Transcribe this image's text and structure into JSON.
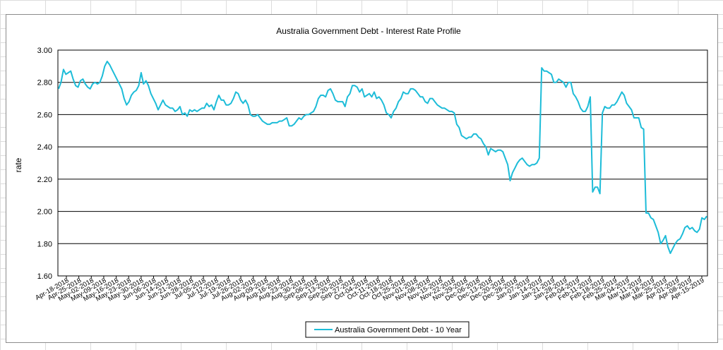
{
  "colors": {
    "series": "#1dbcd8",
    "grid": "#000000",
    "sheet_grid": "#dcdcdc"
  },
  "chart_data": {
    "type": "line",
    "title": "Australia Government Debt -  Interest Rate Profile",
    "xlabel": "",
    "ylabel": "rate",
    "ylim": [
      1.6,
      3.0
    ],
    "ytick_step": 0.2,
    "yticks": [
      "1.60",
      "1.80",
      "2.00",
      "2.20",
      "2.40",
      "2.60",
      "2.80",
      "3.00"
    ],
    "legend": "bottom-center",
    "x_tick_labels": [
      "Apr-18-2018",
      "Apr-25-2018",
      "May-02-2018",
      "May-09-2018",
      "May-16-2018",
      "May-23-2018",
      "May-30-2018",
      "Jun-06-2018",
      "Jun-14-2018",
      "Jun-21-2018",
      "Jun-28-2018",
      "Jul-05-2018",
      "Jul-12-2018",
      "Jul-19-2018",
      "Jul-26-2018",
      "Aug-02-2018",
      "Aug-09-2018",
      "Aug-16-2018",
      "Aug-23-2018",
      "Aug-30-2018",
      "Sep-06-2018",
      "Sep-13-2018",
      "Sep-20-2018",
      "Sep-27-2018",
      "Oct-04-2018",
      "Oct-11-2018",
      "Oct-18-2018",
      "Oct-25-2018",
      "Nov-01-2018",
      "Nov-08-2018",
      "Nov-15-2018",
      "Nov-22-2018",
      "Nov-29-2018",
      "Dec-06-2018",
      "Dec-13-2018",
      "Dec-20-2018",
      "Dec-28-2018",
      "Jan-07-2019",
      "Jan-14-2019",
      "Jan-21-2019",
      "Jan-28-2019",
      "Feb-04-2019",
      "Feb-11-2019",
      "Feb-18-2019",
      "Feb-25-2019",
      "Mar-04-2019",
      "Mar-11-2019",
      "Mar-18-2019",
      "Mar-25-2019",
      "Apr-01-2019",
      "Apr-08-2019",
      "Apr-15-2019"
    ],
    "series": [
      {
        "name": "Australia Government Debt - 10 Year",
        "values": [
          2.76,
          2.8,
          2.88,
          2.85,
          2.86,
          2.87,
          2.82,
          2.78,
          2.77,
          2.81,
          2.82,
          2.79,
          2.77,
          2.76,
          2.79,
          2.8,
          2.79,
          2.8,
          2.84,
          2.9,
          2.93,
          2.91,
          2.88,
          2.85,
          2.82,
          2.79,
          2.76,
          2.7,
          2.66,
          2.68,
          2.72,
          2.74,
          2.75,
          2.78,
          2.86,
          2.79,
          2.81,
          2.78,
          2.73,
          2.7,
          2.67,
          2.63,
          2.66,
          2.69,
          2.66,
          2.65,
          2.64,
          2.64,
          2.62,
          2.63,
          2.65,
          2.6,
          2.61,
          2.59,
          2.63,
          2.62,
          2.63,
          2.62,
          2.63,
          2.64,
          2.64,
          2.67,
          2.65,
          2.66,
          2.63,
          2.68,
          2.72,
          2.69,
          2.69,
          2.66,
          2.66,
          2.67,
          2.7,
          2.74,
          2.73,
          2.69,
          2.67,
          2.69,
          2.66,
          2.6,
          2.59,
          2.59,
          2.6,
          2.58,
          2.56,
          2.55,
          2.54,
          2.54,
          2.55,
          2.55,
          2.55,
          2.56,
          2.56,
          2.57,
          2.58,
          2.53,
          2.53,
          2.54,
          2.56,
          2.58,
          2.57,
          2.59,
          2.6,
          2.6,
          2.61,
          2.62,
          2.65,
          2.7,
          2.72,
          2.72,
          2.71,
          2.75,
          2.76,
          2.73,
          2.69,
          2.68,
          2.68,
          2.68,
          2.65,
          2.71,
          2.73,
          2.78,
          2.78,
          2.77,
          2.74,
          2.76,
          2.71,
          2.72,
          2.73,
          2.71,
          2.74,
          2.7,
          2.71,
          2.69,
          2.66,
          2.61,
          2.6,
          2.58,
          2.62,
          2.64,
          2.68,
          2.7,
          2.74,
          2.73,
          2.73,
          2.76,
          2.76,
          2.75,
          2.73,
          2.71,
          2.71,
          2.68,
          2.67,
          2.7,
          2.7,
          2.68,
          2.66,
          2.65,
          2.64,
          2.64,
          2.63,
          2.62,
          2.62,
          2.61,
          2.54,
          2.52,
          2.47,
          2.46,
          2.45,
          2.46,
          2.46,
          2.48,
          2.48,
          2.46,
          2.45,
          2.42,
          2.4,
          2.35,
          2.39,
          2.38,
          2.37,
          2.38,
          2.38,
          2.37,
          2.33,
          2.29,
          2.19,
          2.24,
          2.27,
          2.3,
          2.32,
          2.33,
          2.31,
          2.29,
          2.28,
          2.29,
          2.29,
          2.3,
          2.33,
          2.89,
          2.87,
          2.87,
          2.86,
          2.85,
          2.8,
          2.8,
          2.82,
          2.81,
          2.8,
          2.77,
          2.8,
          2.8,
          2.73,
          2.71,
          2.68,
          2.64,
          2.62,
          2.62,
          2.65,
          2.71,
          2.12,
          2.15,
          2.15,
          2.11,
          2.61,
          2.65,
          2.64,
          2.64,
          2.66,
          2.66,
          2.68,
          2.71,
          2.74,
          2.72,
          2.67,
          2.65,
          2.63,
          2.58,
          2.58,
          2.58,
          2.52,
          2.51,
          1.99,
          1.99,
          1.96,
          1.95,
          1.91,
          1.87,
          1.8,
          1.82,
          1.85,
          1.78,
          1.74,
          1.77,
          1.8,
          1.82,
          1.83,
          1.86,
          1.9,
          1.91,
          1.89,
          1.9,
          1.88,
          1.87,
          1.89,
          1.96,
          1.95,
          1.97
        ]
      }
    ]
  }
}
